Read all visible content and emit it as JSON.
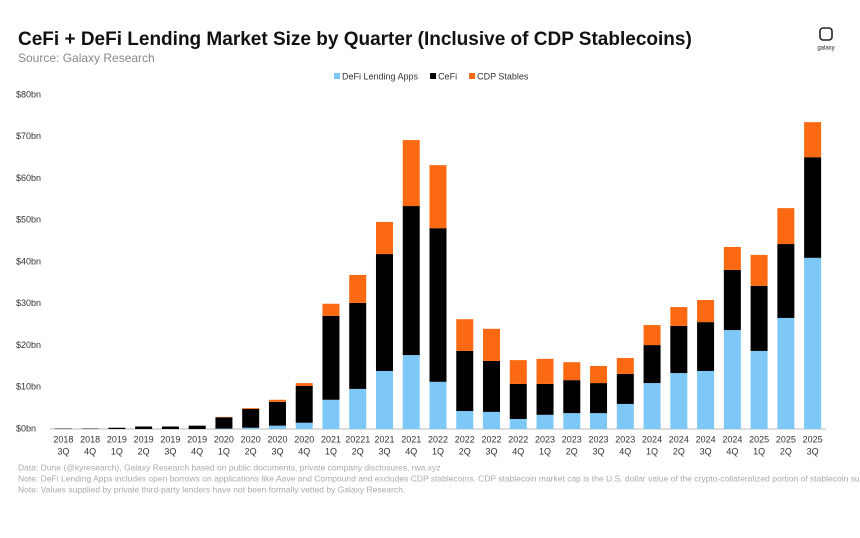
{
  "chart_data": {
    "type": "stacked-bar",
    "title": "CeFi + DeFi Lending Market Size by Quarter (Inclusive of CDP Stablecoins)",
    "subtitle": "Source: Galaxy Research",
    "logo": "galaxy",
    "categories": [
      [
        "2018",
        "3Q"
      ],
      [
        "2018",
        "4Q"
      ],
      [
        "2019",
        "1Q"
      ],
      [
        "2019",
        "2Q"
      ],
      [
        "2019",
        "3Q"
      ],
      [
        "2019",
        "4Q"
      ],
      [
        "2020",
        "1Q"
      ],
      [
        "2020",
        "2Q"
      ],
      [
        "2020",
        "3Q"
      ],
      [
        "2020",
        "4Q"
      ],
      [
        "2021",
        "1Q"
      ],
      [
        "20221",
        "2Q"
      ],
      [
        "2021",
        "3Q"
      ],
      [
        "2021",
        "4Q"
      ],
      [
        "2022",
        "1Q"
      ],
      [
        "2022",
        "2Q"
      ],
      [
        "2022",
        "3Q"
      ],
      [
        "2022",
        "4Q"
      ],
      [
        "2023",
        "1Q"
      ],
      [
        "2023",
        "2Q"
      ],
      [
        "2023",
        "3Q"
      ],
      [
        "2023",
        "4Q"
      ],
      [
        "2024",
        "1Q"
      ],
      [
        "2024",
        "2Q"
      ],
      [
        "2024",
        "3Q"
      ],
      [
        "2024",
        "4Q"
      ],
      [
        "2025",
        "1Q"
      ],
      [
        "2025",
        "2Q"
      ],
      [
        "2025",
        "3Q"
      ]
    ],
    "series": [
      {
        "name": "DeFi Lending Apps",
        "color": "#7ec8f7",
        "values": [
          0,
          0,
          0,
          0,
          0,
          0,
          0.1,
          0.3,
          0.8,
          1.5,
          7.0,
          9.6,
          13.9,
          17.7,
          11.3,
          4.3,
          4.1,
          2.4,
          3.4,
          3.8,
          3.8,
          6.0,
          11.0,
          13.4,
          13.9,
          23.7,
          18.7,
          26.6,
          41.0
        ]
      },
      {
        "name": "CeFi",
        "color": "#000000",
        "values": [
          0.1,
          0.1,
          0.3,
          0.6,
          0.6,
          0.8,
          2.7,
          4.5,
          5.7,
          8.8,
          20.1,
          20.6,
          28.0,
          35.7,
          36.8,
          14.4,
          12.2,
          8.4,
          7.4,
          7.9,
          7.2,
          7.2,
          9.1,
          11.3,
          11.7,
          14.4,
          15.6,
          17.7,
          24.1
        ]
      },
      {
        "name": "CDP Stables",
        "color": "#fb6a12",
        "values": [
          0,
          0,
          0,
          0,
          0,
          0,
          0.1,
          0.2,
          0.5,
          0.7,
          2.9,
          6.7,
          7.7,
          15.8,
          15.1,
          7.6,
          7.7,
          5.7,
          6.0,
          4.3,
          4.1,
          3.8,
          4.8,
          4.5,
          5.3,
          5.5,
          7.4,
          8.6,
          8.4
        ]
      }
    ],
    "ylim": [
      0,
      80
    ],
    "yticks": [
      {
        "value": 0,
        "label": "$0bn"
      },
      {
        "value": 10,
        "label": "$10bn"
      },
      {
        "value": 20,
        "label": "$20bn"
      },
      {
        "value": 30,
        "label": "$30bn"
      },
      {
        "value": 40,
        "label": "$40bn"
      },
      {
        "value": 50,
        "label": "$50bn"
      },
      {
        "value": 60,
        "label": "$60bn"
      },
      {
        "value": 70,
        "label": "$70bn"
      },
      {
        "value": 80,
        "label": "$80bn"
      }
    ],
    "legend": "top",
    "notes": [
      "Data: Dune (@kyresearch), Galaxy Research based on public documents, private company disclosures, rwa.xyz",
      "Note: DeFi Lending Apps includes open borrows on applications like Aave and Compound and excludes CDP stablecoins. CDP stablecoin market cap is the U.S. dollar value of the crypto-collateralized portion of stablecoin supply",
      "Note: Values supplied by private third-party lenders have not been formally vetted  by Galaxy Research."
    ]
  }
}
